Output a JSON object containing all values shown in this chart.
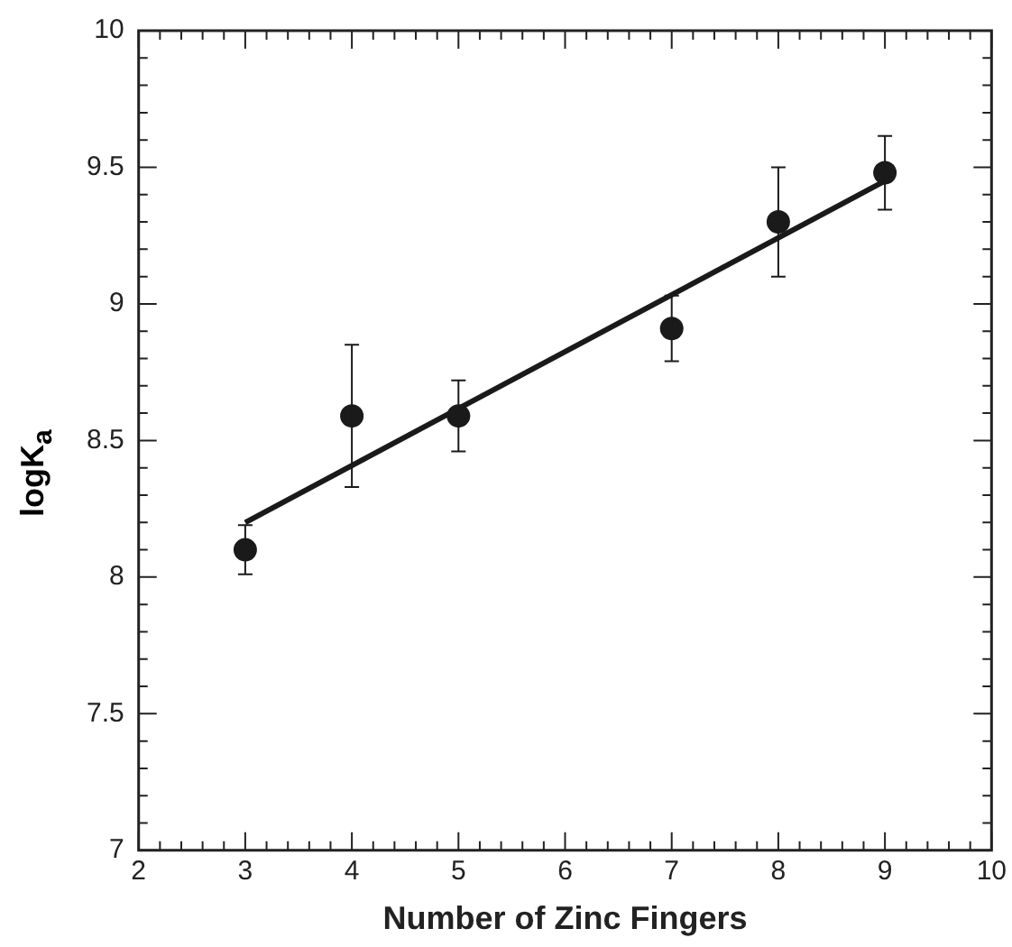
{
  "chart_data": {
    "type": "scatter",
    "xlabel": "Number of Zinc Fingers",
    "ylabel": "logK$_{a}$",
    "marker": "circle",
    "grid": false,
    "legend": false,
    "series": [
      {
        "type": "scatter",
        "color": "#1a1a1a",
        "x": [
          3,
          4,
          5,
          7,
          8,
          9
        ],
        "values": [
          8.1,
          8.59,
          8.59,
          8.91,
          9.3,
          9.48
        ],
        "errors": [
          0.09,
          0.26,
          0.13,
          0.12,
          0.2,
          0.135
        ]
      },
      {
        "type": "line",
        "color": "#1a1a1a",
        "x": [
          3,
          9
        ],
        "values": [
          8.2,
          9.45
        ],
        "marker": "none",
        "line_style": "solid"
      }
    ],
    "xlim": [
      2,
      10
    ],
    "ylim": [
      7,
      10
    ],
    "xticks": [
      2,
      {
        "value": 2.2,
        "label": null
      },
      {
        "value": 2.4,
        "label": null
      },
      {
        "value": 2.6,
        "label": null
      },
      {
        "value": 2.8,
        "label": null
      },
      3,
      {
        "value": 3.2,
        "label": null
      },
      {
        "value": 3.4,
        "label": null
      },
      {
        "value": 3.6,
        "label": null
      },
      {
        "value": 3.8,
        "label": null
      },
      4,
      {
        "value": 4.2,
        "label": null
      },
      {
        "value": 4.4,
        "label": null
      },
      {
        "value": 4.6,
        "label": null
      },
      {
        "value": 4.8,
        "label": null
      },
      5,
      {
        "value": 5.2,
        "label": null
      },
      {
        "value": 5.4,
        "label": null
      },
      {
        "value": 5.6,
        "label": null
      },
      {
        "value": 5.8,
        "label": null
      },
      6,
      {
        "value": 6.2,
        "label": null
      },
      {
        "value": 6.4,
        "label": null
      },
      {
        "value": 6.6,
        "label": null
      },
      {
        "value": 6.8,
        "label": null
      },
      7,
      {
        "value": 7.2,
        "label": null
      },
      {
        "value": 7.4,
        "label": null
      },
      {
        "value": 7.6,
        "label": null
      },
      {
        "value": 7.8,
        "label": null
      },
      8,
      {
        "value": 8.2,
        "label": null
      },
      {
        "value": 8.4,
        "label": null
      },
      {
        "value": 8.6,
        "label": null
      },
      {
        "value": 8.8,
        "label": null
      },
      9,
      {
        "value": 9.2,
        "label": null
      },
      {
        "value": 9.4,
        "label": null
      },
      {
        "value": 9.6,
        "label": null
      },
      {
        "value": 9.8,
        "label": null
      },
      10
    ],
    "yticks": [
      7,
      {
        "value": 7.1,
        "label": null
      },
      {
        "value": 7.2,
        "label": null
      },
      {
        "value": 7.3,
        "label": null
      },
      {
        "value": 7.4,
        "label": null
      },
      7.5,
      {
        "value": 7.6,
        "label": null
      },
      {
        "value": 7.7,
        "label": null
      },
      {
        "value": 7.8,
        "label": null
      },
      {
        "value": 7.9,
        "label": null
      },
      8,
      {
        "value": 8.1,
        "label": null
      },
      {
        "value": 8.2,
        "label": null
      },
      {
        "value": 8.3,
        "label": null
      },
      {
        "value": 8.4,
        "label": null
      },
      8.5,
      {
        "value": 8.6,
        "label": null
      },
      {
        "value": 8.7,
        "label": null
      },
      {
        "value": 8.8,
        "label": null
      },
      {
        "value": 8.9,
        "label": null
      },
      9,
      {
        "value": 9.1,
        "label": null
      },
      {
        "value": 9.2,
        "label": null
      },
      {
        "value": 9.3,
        "label": null
      },
      {
        "value": 9.4,
        "label": null
      },
      9.5,
      {
        "value": 9.6,
        "label": null
      },
      {
        "value": 9.7,
        "label": null
      },
      {
        "value": 9.8,
        "label": null
      },
      {
        "value": 9.9,
        "label": null
      },
      10
    ]
  }
}
